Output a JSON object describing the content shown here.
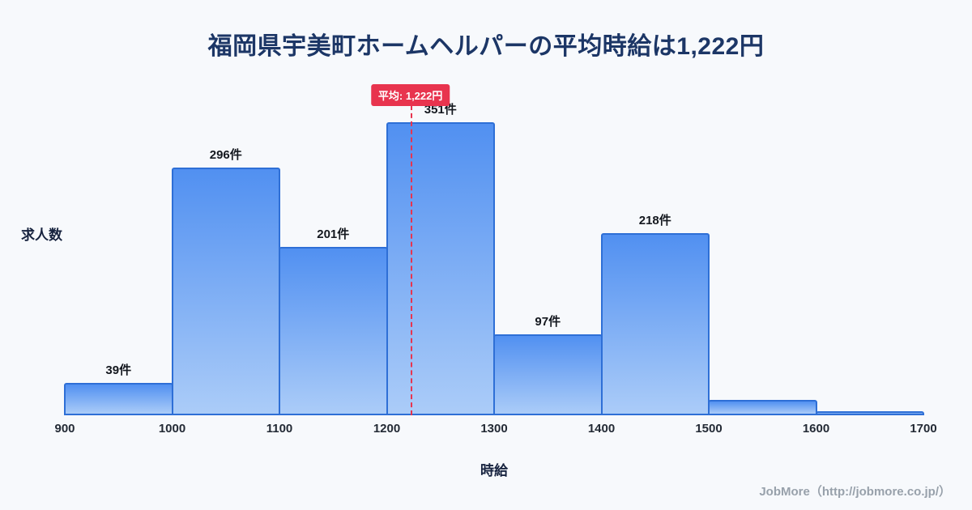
{
  "title": "福岡県宇美町ホームヘルパーの平均時給は1,222円",
  "average_badge": "平均: 1,222円",
  "y_axis_label": "求人数",
  "x_axis_label": "時給",
  "footer": "JobMore（http://jobmore.co.jp/）",
  "colors": {
    "background": "#f7f9fc",
    "title": "#1c3666",
    "bar_border": "#2e6fd6",
    "bar_gradient_top": "#5190f1",
    "bar_gradient_bottom": "#abccf8",
    "average_red": "#e8344e",
    "footer_gray": "#98a1ab"
  },
  "chart_data": {
    "type": "bar",
    "title": "福岡県宇美町ホームヘルパーの平均時給は1,222円",
    "xlabel": "時給",
    "ylabel": "求人数",
    "x_range": [
      900,
      1700
    ],
    "ylim": [
      0,
      400
    ],
    "grid": false,
    "legend": null,
    "x_ticks": [
      "900",
      "1000",
      "1100",
      "1200",
      "1300",
      "1400",
      "1500",
      "1600",
      "1700"
    ],
    "bins": [
      {
        "range": [
          900,
          1000
        ],
        "count": 39,
        "label": "39件"
      },
      {
        "range": [
          1000,
          1100
        ],
        "count": 296,
        "label": "296件"
      },
      {
        "range": [
          1100,
          1200
        ],
        "count": 201,
        "label": "201件"
      },
      {
        "range": [
          1200,
          1300
        ],
        "count": 351,
        "label": "351件"
      },
      {
        "range": [
          1300,
          1400
        ],
        "count": 97,
        "label": "97件"
      },
      {
        "range": [
          1400,
          1500
        ],
        "count": 218,
        "label": "218件"
      },
      {
        "range": [
          1500,
          1600
        ],
        "count": 18,
        "label": ""
      },
      {
        "range": [
          1600,
          1700
        ],
        "count": 5,
        "label": ""
      }
    ],
    "average": 1222,
    "average_label": "平均: 1,222円"
  }
}
